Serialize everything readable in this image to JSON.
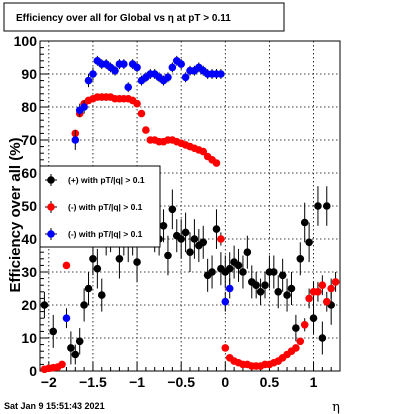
{
  "chart_data": {
    "type": "scatter",
    "title": "Efficiency over all for Global vs   η at pT > 0.11",
    "xlabel": "η",
    "ylabel": "Efficiency over all (%)",
    "xlim": [
      -2.1,
      1.3
    ],
    "ylim": [
      0,
      100
    ],
    "x_ticks": [
      -2,
      -1.5,
      -1,
      -0.5,
      0,
      0.5,
      1
    ],
    "x_tick_labels": [
      "−2",
      "−1.5",
      "−1",
      "−0.5",
      "0",
      "0.5",
      "1"
    ],
    "y_ticks": [
      0,
      10,
      20,
      30,
      40,
      50,
      60,
      70,
      80,
      90,
      100
    ],
    "y_tick_labels": [
      "0",
      "10",
      "20",
      "30",
      "40",
      "50",
      "60",
      "70",
      "80",
      "90",
      "100"
    ],
    "grid": true,
    "legend_position": "left",
    "series": [
      {
        "name": "(+) with pT/|q| > 0.1",
        "color": "#000000",
        "x": [
          -2.05,
          -1.95,
          -1.75,
          -1.7,
          -1.65,
          -1.6,
          -1.55,
          -1.5,
          -1.45,
          -1.4,
          -1.35,
          -1.3,
          -1.25,
          -1.2,
          -1.15,
          -1.1,
          -1.05,
          -1.0,
          -0.95,
          -0.9,
          -0.85,
          -0.8,
          -0.75,
          -0.7,
          -0.65,
          -0.6,
          -0.55,
          -0.5,
          -0.45,
          -0.4,
          -0.35,
          -0.3,
          -0.25,
          -0.2,
          -0.15,
          -0.1,
          -0.05,
          0.0,
          0.05,
          0.1,
          0.15,
          0.2,
          0.25,
          0.3,
          0.35,
          0.4,
          0.45,
          0.5,
          0.55,
          0.6,
          0.65,
          0.7,
          0.75,
          0.8,
          0.85,
          0.9,
          0.95,
          1.0,
          1.05,
          1.1,
          1.15,
          1.2
        ],
        "y": [
          20,
          12,
          7,
          5,
          9,
          20,
          25,
          34,
          31,
          23,
          41,
          42,
          45,
          34,
          41,
          40,
          41,
          33,
          47,
          45,
          47,
          42,
          40,
          44,
          35,
          49,
          41,
          40,
          42,
          36,
          40,
          38,
          39,
          29,
          30,
          43,
          31,
          30,
          31,
          33,
          32,
          30,
          36,
          27,
          26,
          24,
          26,
          30,
          30,
          24,
          29,
          23,
          25,
          13,
          34,
          45,
          39,
          16,
          50,
          10,
          50,
          20
        ],
        "err": [
          4,
          5,
          5,
          3,
          4,
          5,
          5,
          5,
          6,
          5,
          6,
          6,
          5,
          6,
          6,
          7,
          6,
          6,
          6,
          6,
          5,
          6,
          5,
          5,
          6,
          6,
          5,
          6,
          6,
          6,
          6,
          5,
          5,
          5,
          5,
          6,
          5,
          5,
          5,
          5,
          5,
          5,
          5,
          5,
          4,
          4,
          4,
          5,
          5,
          5,
          5,
          5,
          5,
          4,
          5,
          6,
          6,
          5,
          6,
          5,
          6,
          6
        ]
      },
      {
        "name": "(-) with pT/|q| > 0.1",
        "color": "#ff0000",
        "x": [
          -2.05,
          -2.0,
          -1.95,
          -1.9,
          -1.85,
          -1.8,
          -1.75,
          -1.7,
          -1.65,
          -1.6,
          -1.55,
          -1.5,
          -1.45,
          -1.4,
          -1.35,
          -1.3,
          -1.25,
          -1.2,
          -1.15,
          -1.1,
          -1.05,
          -1.0,
          -0.95,
          -0.9,
          -0.85,
          -0.8,
          -0.75,
          -0.7,
          -0.65,
          -0.6,
          -0.55,
          -0.5,
          -0.45,
          -0.4,
          -0.35,
          -0.3,
          -0.25,
          -0.2,
          -0.15,
          -0.1,
          -0.05,
          0.0,
          0.05,
          0.1,
          0.15,
          0.2,
          0.25,
          0.3,
          0.35,
          0.4,
          0.45,
          0.5,
          0.55,
          0.6,
          0.65,
          0.7,
          0.75,
          0.8,
          0.85,
          0.9,
          0.95,
          1.0,
          1.05,
          1.1,
          1.15,
          1.2,
          1.25
        ],
        "y": [
          0.5,
          0.8,
          1,
          1.2,
          2,
          32,
          60,
          72,
          78,
          81,
          82,
          82.5,
          83,
          83,
          83,
          83,
          82.5,
          82.5,
          82.5,
          82.5,
          82,
          81,
          78,
          73,
          70,
          70,
          69.5,
          69.5,
          70,
          70,
          69.5,
          69,
          68.5,
          68,
          67.5,
          67,
          66.5,
          65,
          64,
          63,
          40,
          7,
          4,
          3,
          2.5,
          2,
          2,
          1.5,
          1.5,
          1.5,
          2,
          2,
          2.5,
          3,
          4,
          5,
          6,
          7,
          9,
          14,
          22,
          24,
          24,
          26,
          21,
          25,
          27
        ],
        "err": [
          0.3,
          0.3,
          0.4,
          0.5,
          0.6,
          1,
          1,
          1,
          1,
          1,
          1,
          1,
          1,
          1,
          1,
          1,
          1,
          1,
          1,
          1,
          1,
          1,
          1,
          1,
          1,
          1,
          1,
          1,
          1,
          1,
          1,
          1,
          1,
          1,
          1,
          1,
          1,
          1,
          1,
          1,
          2,
          1,
          0.8,
          0.6,
          0.5,
          0.5,
          0.5,
          0.4,
          0.4,
          0.4,
          0.5,
          0.5,
          0.5,
          0.6,
          0.8,
          1,
          1,
          1,
          1,
          2,
          3,
          3,
          3,
          3,
          3,
          3,
          3
        ]
      },
      {
        "name": "(-) with pT/|q| > 0.1",
        "color": "#0000ff",
        "x": [
          -1.8,
          -1.7,
          -1.65,
          -1.6,
          -1.55,
          -1.5,
          -1.45,
          -1.4,
          -1.35,
          -1.3,
          -1.25,
          -1.2,
          -1.15,
          -1.1,
          -1.05,
          -1.0,
          -0.95,
          -0.9,
          -0.85,
          -0.8,
          -0.75,
          -0.7,
          -0.65,
          -0.6,
          -0.55,
          -0.5,
          -0.45,
          -0.4,
          -0.35,
          -0.3,
          -0.25,
          -0.2,
          -0.15,
          -0.1,
          -0.05,
          0.0,
          0.05
        ],
        "y": [
          16,
          70,
          79,
          80,
          88,
          90,
          94,
          93,
          93,
          92,
          91,
          93,
          93,
          86,
          93,
          92,
          88,
          89,
          90,
          90,
          89,
          88,
          89,
          92,
          94,
          93,
          89,
          91,
          91,
          92,
          91,
          90,
          90,
          90,
          90,
          21,
          25
        ],
        "err": [
          3,
          3,
          2,
          2,
          2,
          2,
          1.5,
          1.5,
          1.5,
          1.5,
          1.5,
          1.5,
          1.5,
          1.5,
          1.5,
          1.5,
          1.5,
          1.5,
          1.5,
          1.5,
          1.5,
          1.5,
          1.5,
          1.5,
          1.5,
          1.5,
          1.5,
          1.5,
          1.5,
          1.5,
          1.5,
          1.5,
          1.5,
          1.5,
          1.5,
          3,
          3
        ]
      }
    ]
  },
  "timestamp": "Sat Jan  9 15:51:43 2021"
}
